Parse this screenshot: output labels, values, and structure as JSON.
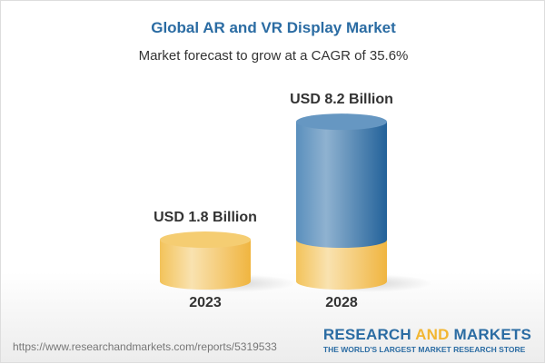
{
  "title": "Global AR and VR Display Market",
  "subtitle": "Market forecast to grow at a CAGR of 35.6%",
  "chart_data": {
    "type": "bar",
    "style": "3d-cylinder",
    "categories": [
      "2023",
      "2028"
    ],
    "values": [
      1.8,
      8.2
    ],
    "data_labels": [
      "USD 1.8 Billion",
      "USD 8.2 Billion"
    ],
    "unit": "USD Billion",
    "colors": {
      "base": "#f2c45a",
      "growth": "#3f7bb0"
    }
  },
  "footer": {
    "url": "https://www.researchandmarkets.com/reports/5319533",
    "logo_part1": "RESEARCH ",
    "logo_part2": "AND",
    "logo_part3": " MARKETS",
    "tagline": "THE WORLD'S LARGEST MARKET RESEARCH STORE"
  }
}
